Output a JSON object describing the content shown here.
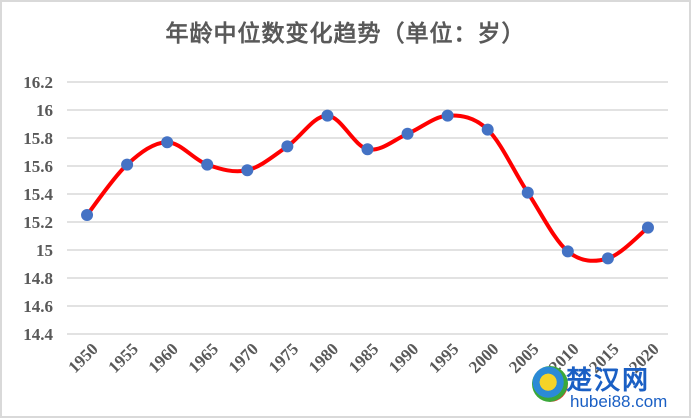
{
  "chart_data": {
    "type": "line",
    "title": "年龄中位数变化趋势（单位：岁）",
    "xlabel": "",
    "ylabel": "",
    "categories": [
      "1950",
      "1955",
      "1960",
      "1965",
      "1970",
      "1975",
      "1980",
      "1985",
      "1990",
      "1995",
      "2000",
      "2005",
      "2010",
      "2015",
      "2020"
    ],
    "series": [
      {
        "name": "年龄中位数",
        "values": [
          15.25,
          15.61,
          15.77,
          15.61,
          15.57,
          15.74,
          15.96,
          15.72,
          15.83,
          15.96,
          15.86,
          15.41,
          14.99,
          14.94,
          15.16
        ],
        "line_color": "#ff0000",
        "marker_color": "#4472c4",
        "smooth": true
      }
    ],
    "ylim": [
      14.4,
      16.2
    ],
    "yticks": [
      "14.4",
      "14.6",
      "14.8",
      "15",
      "15.2",
      "15.4",
      "15.6",
      "15.8",
      "16",
      "16.2"
    ],
    "grid": true,
    "legend": "none"
  },
  "watermark": {
    "cn": "楚汉网",
    "url": "hubei88.com"
  }
}
